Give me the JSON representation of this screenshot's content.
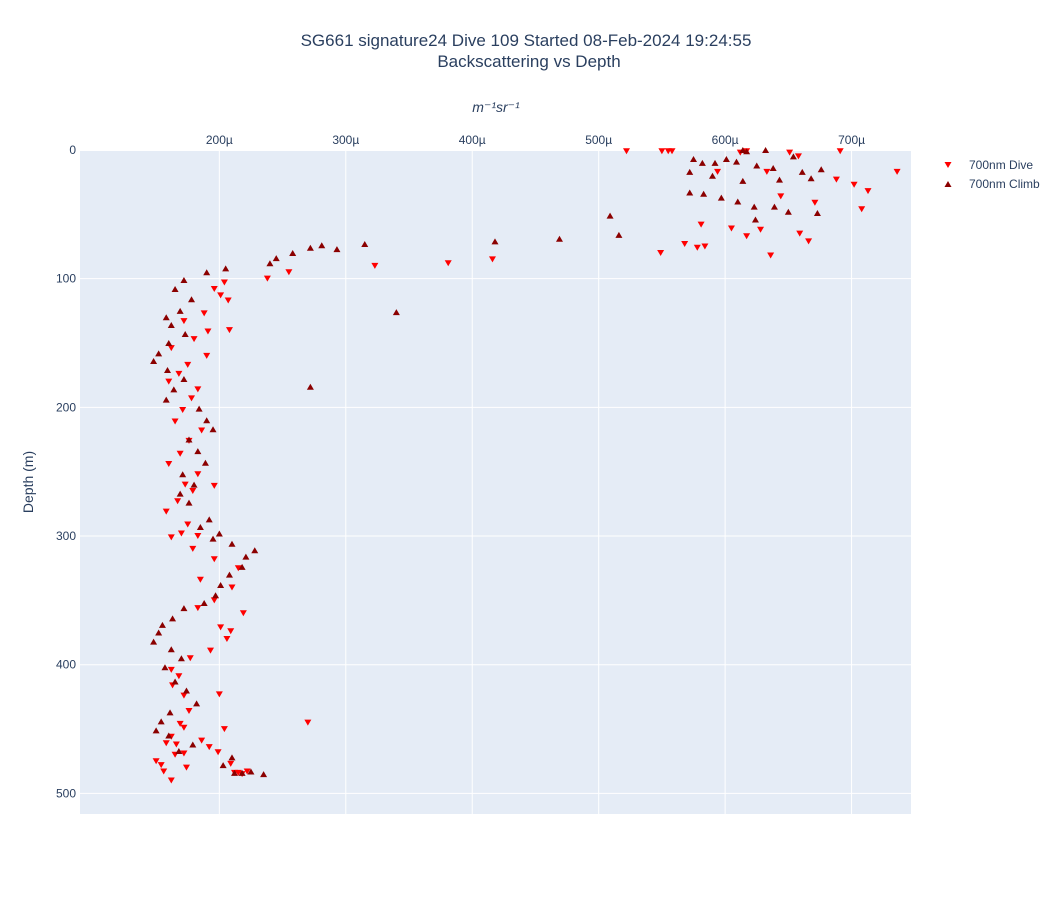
{
  "chart_data": {
    "type": "scatter",
    "title": "SG661 signature24 Dive 109 Started 08-Feb-2024 19:24:55",
    "subtitle": "Backscattering vs Depth",
    "xlabel": "m⁻¹sr⁻¹",
    "ylabel": "Depth (m)",
    "x_axis_position": "top",
    "y_reversed": true,
    "xlim": [
      8.98e-05,
      0.000747
    ],
    "ylim": [
      0,
      516
    ],
    "x_ticks": [
      0.0002,
      0.0003,
      0.0004,
      0.0005,
      0.0006,
      0.0007
    ],
    "x_tick_labels": [
      "200µ",
      "300µ",
      "400µ",
      "500µ",
      "600µ",
      "700µ"
    ],
    "y_ticks": [
      0,
      100,
      200,
      300,
      400,
      500
    ],
    "y_tick_labels": [
      "0",
      "100",
      "200",
      "300",
      "400",
      "500"
    ],
    "grid": true,
    "legend_position": "top-right",
    "series": [
      {
        "name": "700nm Dive",
        "marker": "triangle-down",
        "color": "#ff0000",
        "x": [
          0.000522,
          0.00055,
          0.000555,
          0.000558,
          0.000617,
          0.000651,
          0.000658,
          0.000691,
          0.000612,
          0.000594,
          0.000633,
          0.000688,
          0.000736,
          0.000702,
          0.000713,
          0.000644,
          0.000671,
          0.000708,
          0.000581,
          0.000578,
          0.000605,
          0.000617,
          0.000628,
          0.000659,
          0.000666,
          0.000568,
          0.000584,
          0.000549,
          0.000636,
          0.000416,
          0.000381,
          0.000323,
          0.000255,
          0.000238,
          0.000204,
          0.000196,
          0.000201,
          0.000207,
          0.000188,
          0.000172,
          0.000191,
          0.000208,
          0.00018,
          0.000162,
          0.00019,
          0.000175,
          0.000168,
          0.00016,
          0.000183,
          0.000178,
          0.000171,
          0.000165,
          0.000186,
          0.000176,
          0.000169,
          0.00016,
          0.000183,
          0.000173,
          0.000179,
          0.000167,
          0.000196,
          0.000158,
          0.000175,
          0.00017,
          0.000162,
          0.000183,
          0.000179,
          0.000196,
          0.000215,
          0.000185,
          0.00021,
          0.000196,
          0.000183,
          0.000219,
          0.000201,
          0.000209,
          0.000206,
          0.000193,
          0.000177,
          0.000162,
          0.000168,
          0.000163,
          0.000172,
          0.000176,
          0.000169,
          0.000162,
          0.000158,
          0.000165,
          0.000154,
          0.00015,
          0.000156,
          0.000162,
          0.000174,
          0.000172,
          0.000166,
          0.000172,
          0.0002,
          0.00027,
          0.000204,
          0.000192,
          0.000186,
          0.000199,
          0.000209,
          0.000212,
          0.000215,
          0.000222,
          0.000218
        ],
        "y": [
          1,
          1,
          1,
          1,
          1,
          2,
          5,
          1,
          2,
          17,
          17,
          23,
          17,
          27,
          32,
          36,
          41,
          46,
          58,
          76,
          61,
          67,
          62,
          65,
          71,
          73,
          75,
          80,
          82,
          85,
          88,
          90,
          95,
          100,
          103,
          108,
          113,
          117,
          127,
          133,
          141,
          140,
          147,
          154,
          160,
          167,
          174,
          180,
          186,
          193,
          202,
          211,
          218,
          226,
          236,
          244,
          252,
          260,
          265,
          273,
          261,
          281,
          291,
          298,
          301,
          300,
          310,
          318,
          325,
          334,
          340,
          350,
          356,
          360,
          371,
          374,
          380,
          389,
          395,
          404,
          409,
          416,
          424,
          436,
          446,
          456,
          461,
          470,
          478,
          475,
          483,
          490,
          480,
          469,
          462,
          449,
          423,
          445,
          450,
          464,
          459,
          468,
          477,
          484,
          484,
          483,
          485
        ]
      },
      {
        "name": "700nm Climb",
        "marker": "triangle-up",
        "color": "#8b0000",
        "x": [
          0.000614,
          0.000617,
          0.000632,
          0.000654,
          0.000661,
          0.000676,
          0.000601,
          0.000575,
          0.000582,
          0.000592,
          0.000609,
          0.000625,
          0.000638,
          0.000572,
          0.00059,
          0.000614,
          0.000643,
          0.000668,
          0.000572,
          0.000583,
          0.000597,
          0.00061,
          0.000623,
          0.000639,
          0.00065,
          0.000673,
          0.000624,
          0.000509,
          0.000516,
          0.000469,
          0.000418,
          0.000315,
          0.000293,
          0.000281,
          0.000272,
          0.000258,
          0.000245,
          0.00024,
          0.000205,
          0.00019,
          0.000172,
          0.000165,
          0.000178,
          0.000169,
          0.000158,
          0.000162,
          0.000173,
          0.00016,
          0.000152,
          0.000148,
          0.000159,
          0.000172,
          0.000164,
          0.000158,
          0.000184,
          0.00019,
          0.000195,
          0.000176,
          0.000183,
          0.000189,
          0.000171,
          0.00018,
          0.000169,
          0.000176,
          0.000192,
          0.000185,
          0.0002,
          0.000195,
          0.00021,
          0.000221,
          0.000228,
          0.000218,
          0.000208,
          0.000201,
          0.000197,
          0.000188,
          0.000172,
          0.000163,
          0.000155,
          0.000152,
          0.000148,
          0.000162,
          0.00017,
          0.000157,
          0.000165,
          0.000174,
          0.000182,
          0.000161,
          0.000154,
          0.00015,
          0.00016,
          0.000179,
          0.000168,
          0.00021,
          0.000203,
          0.000212,
          0.000218,
          0.000225,
          0.000235,
          0.00034,
          0.000272
        ],
        "y": [
          0,
          1,
          0,
          5,
          17,
          15,
          7,
          7,
          10,
          10,
          9,
          12,
          14,
          17,
          20,
          24,
          23,
          22,
          33,
          34,
          37,
          40,
          44,
          44,
          48,
          49,
          54,
          51,
          66,
          69,
          71,
          73,
          77,
          74,
          76,
          80,
          84,
          88,
          92,
          95,
          101,
          108,
          116,
          125,
          130,
          136,
          143,
          150,
          158,
          164,
          171,
          178,
          186,
          194,
          201,
          210,
          217,
          225,
          234,
          243,
          252,
          260,
          267,
          274,
          287,
          293,
          298,
          302,
          306,
          316,
          311,
          324,
          330,
          338,
          346,
          352,
          356,
          364,
          369,
          375,
          382,
          388,
          395,
          402,
          413,
          420,
          430,
          437,
          444,
          451,
          455,
          462,
          467,
          472,
          478,
          484,
          484,
          483,
          485,
          126,
          184
        ]
      }
    ]
  }
}
